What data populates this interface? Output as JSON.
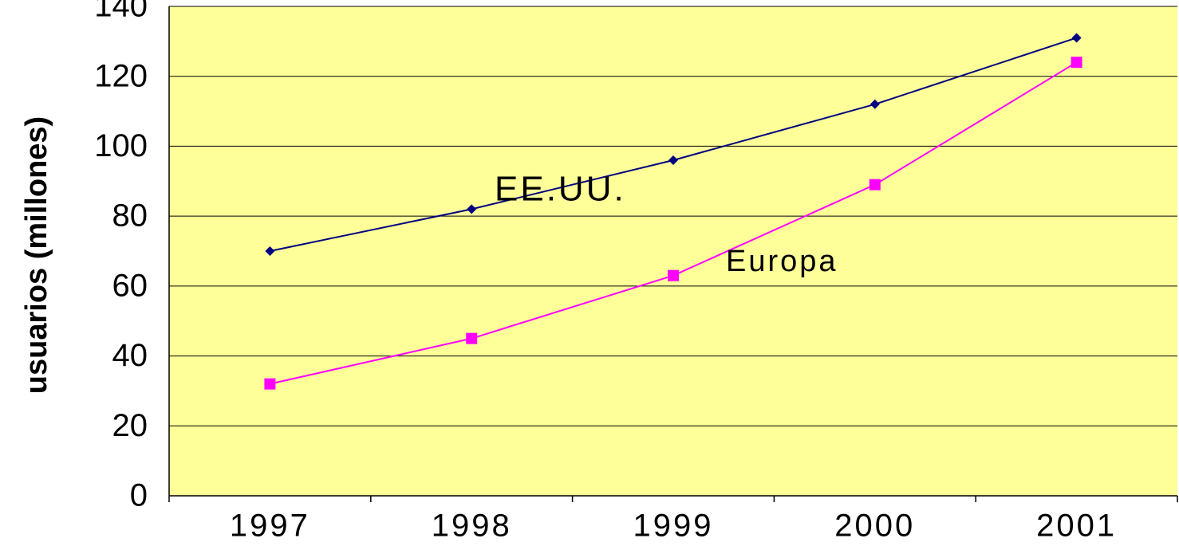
{
  "chart_data": {
    "type": "line",
    "y_label": "usuarios (millones)",
    "categories": [
      "1997",
      "1998",
      "1999",
      "2000",
      "2001"
    ],
    "series": [
      {
        "name": "EE.UU.",
        "color": "#000080",
        "marker": "diamond",
        "values": [
          70,
          82,
          96,
          112,
          131
        ]
      },
      {
        "name": "Europa",
        "color": "#ff00ff",
        "marker": "square",
        "values": [
          32,
          45,
          63,
          89,
          124
        ]
      }
    ],
    "ylim": [
      0,
      140
    ],
    "yticks": [
      0,
      20,
      40,
      60,
      80,
      100,
      120,
      140
    ],
    "grid": true,
    "background": "#ffff99"
  }
}
